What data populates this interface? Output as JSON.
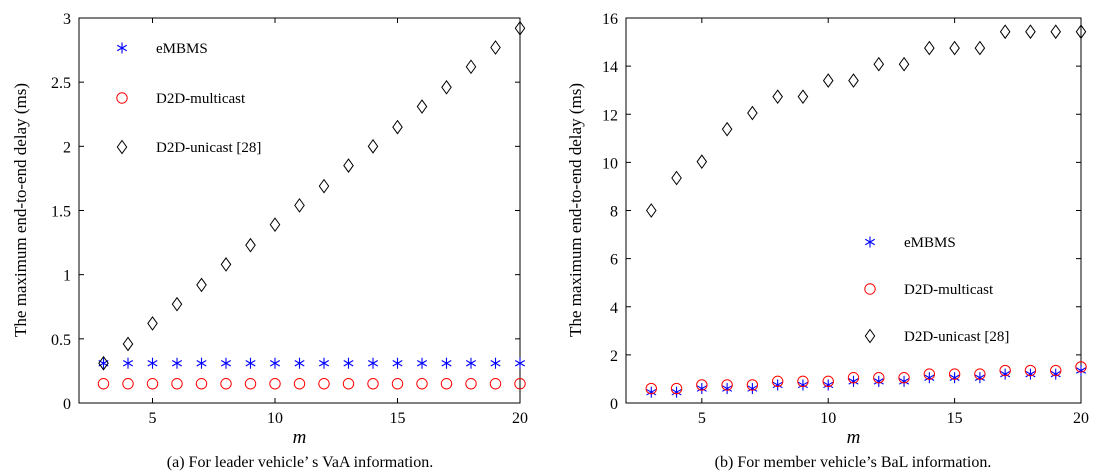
{
  "chart_data": [
    {
      "type": "scatter",
      "caption": "(a) For leader vehicle’ s VaA information.",
      "xlabel": "m",
      "ylabel": "The maximum end-to-end delay (ms)",
      "xlim": [
        2,
        20
      ],
      "ylim": [
        0,
        3
      ],
      "xticks": [
        5,
        10,
        15,
        20
      ],
      "yticks": [
        0,
        0.5,
        1,
        1.5,
        2,
        2.5,
        3
      ],
      "ytick_labels": [
        "0",
        "0.5",
        "1",
        "1.5",
        "2",
        "2.5",
        "3"
      ],
      "legend_position": "top-left",
      "grid": false,
      "x": [
        3,
        4,
        5,
        6,
        7,
        8,
        9,
        10,
        11,
        12,
        13,
        14,
        15,
        16,
        17,
        18,
        19,
        20
      ],
      "series": [
        {
          "name": "eMBMS",
          "marker": "asterisk",
          "color": "#0000ff",
          "values": [
            0.31,
            0.31,
            0.31,
            0.31,
            0.31,
            0.31,
            0.31,
            0.31,
            0.31,
            0.31,
            0.31,
            0.31,
            0.31,
            0.31,
            0.31,
            0.31,
            0.31,
            0.31
          ]
        },
        {
          "name": "D2D-multicast",
          "marker": "circle",
          "color": "#ff0000",
          "values": [
            0.15,
            0.15,
            0.15,
            0.15,
            0.15,
            0.15,
            0.15,
            0.15,
            0.15,
            0.15,
            0.15,
            0.15,
            0.15,
            0.15,
            0.15,
            0.15,
            0.15,
            0.15
          ]
        },
        {
          "name": "D2D-unicast [28]",
          "marker": "diamond",
          "color": "#000000",
          "values": [
            0.31,
            0.46,
            0.62,
            0.77,
            0.92,
            1.08,
            1.23,
            1.39,
            1.54,
            1.69,
            1.85,
            2.0,
            2.15,
            2.31,
            2.46,
            2.62,
            2.77,
            2.92
          ]
        }
      ]
    },
    {
      "type": "scatter",
      "caption": "(b) For member vehicle’s BaL information.",
      "xlabel": "m",
      "ylabel": "The maximum end-to-end delay (ms)",
      "xlim": [
        2,
        20
      ],
      "ylim": [
        0,
        16
      ],
      "xticks": [
        5,
        10,
        15,
        20
      ],
      "yticks": [
        0,
        2,
        4,
        6,
        8,
        10,
        12,
        14,
        16
      ],
      "ytick_labels": [
        "0",
        "2",
        "4",
        "6",
        "8",
        "10",
        "12",
        "14",
        "16"
      ],
      "legend_position": "center-right",
      "grid": false,
      "x": [
        3,
        4,
        5,
        6,
        7,
        8,
        9,
        10,
        11,
        12,
        13,
        14,
        15,
        16,
        17,
        18,
        19,
        20
      ],
      "series": [
        {
          "name": "eMBMS",
          "marker": "asterisk",
          "color": "#0000ff",
          "values": [
            0.45,
            0.45,
            0.6,
            0.6,
            0.6,
            0.75,
            0.75,
            0.75,
            0.9,
            0.9,
            0.9,
            1.05,
            1.05,
            1.05,
            1.2,
            1.2,
            1.2,
            1.35
          ]
        },
        {
          "name": "D2D-multicast",
          "marker": "circle",
          "color": "#ff0000",
          "values": [
            0.6,
            0.6,
            0.75,
            0.75,
            0.75,
            0.9,
            0.9,
            0.9,
            1.05,
            1.05,
            1.05,
            1.2,
            1.2,
            1.2,
            1.35,
            1.35,
            1.35,
            1.5
          ]
        },
        {
          "name": "D2D-unicast [28]",
          "marker": "diamond",
          "color": "#000000",
          "values": [
            8.0,
            9.35,
            10.03,
            11.38,
            12.05,
            12.73,
            12.73,
            13.4,
            13.4,
            14.08,
            14.08,
            14.75,
            14.75,
            14.75,
            15.43,
            15.43,
            15.43,
            15.43
          ]
        }
      ]
    }
  ]
}
